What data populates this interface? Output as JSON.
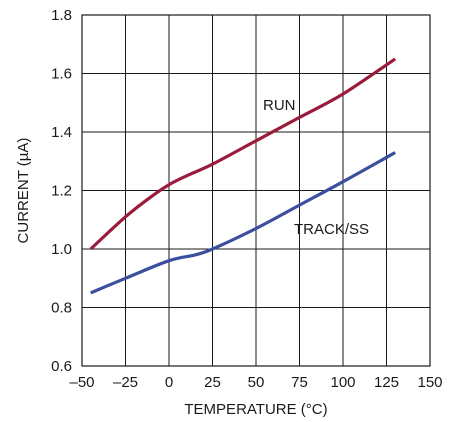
{
  "chart_data": {
    "type": "line",
    "title": "",
    "xlabel": "TEMPERATURE (°C)",
    "ylabel": "CURRENT (µA)",
    "xlim": [
      -50,
      150
    ],
    "ylim": [
      0.6,
      1.8
    ],
    "xticks": [
      -50,
      -25,
      0,
      25,
      50,
      75,
      100,
      125,
      150
    ],
    "yticks": [
      0.6,
      0.8,
      1.0,
      1.2,
      1.4,
      1.6,
      1.8
    ],
    "xtick_labels": [
      "–50",
      "–25",
      "0",
      "25",
      "50",
      "75",
      "100",
      "125",
      "150"
    ],
    "ytick_labels": [
      "0.6",
      "0.8",
      "1.0",
      "1.2",
      "1.4",
      "1.6",
      "1.8"
    ],
    "grid": true,
    "legend": "none",
    "series": [
      {
        "name": "RUN",
        "color": "#9b1b3b",
        "x": [
          -45,
          -25,
          -10,
          0,
          10,
          25,
          50,
          75,
          100,
          130
        ],
        "y": [
          1.0,
          1.11,
          1.18,
          1.22,
          1.25,
          1.29,
          1.37,
          1.45,
          1.53,
          1.65
        ]
      },
      {
        "name": "TRACK/SS",
        "color": "#3a4f9e",
        "x": [
          -45,
          -25,
          0,
          15,
          25,
          50,
          75,
          100,
          130
        ],
        "y": [
          0.85,
          0.9,
          0.96,
          0.98,
          1.0,
          1.07,
          1.15,
          1.23,
          1.33
        ]
      }
    ]
  }
}
